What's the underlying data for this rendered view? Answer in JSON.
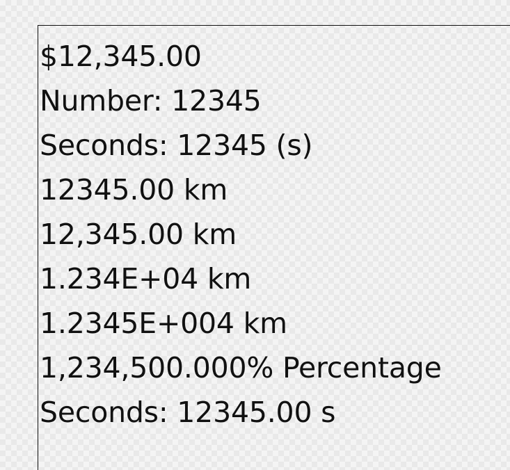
{
  "lines": [
    "$12,345.00",
    "Number: 12345",
    "Seconds: 12345 (s)",
    "12345.00 km",
    "12,345.00 km",
    "1.234E+04 km",
    "1.2345E+004 km",
    "1,234,500.000% Percentage",
    "Seconds: 12345.00 s"
  ]
}
